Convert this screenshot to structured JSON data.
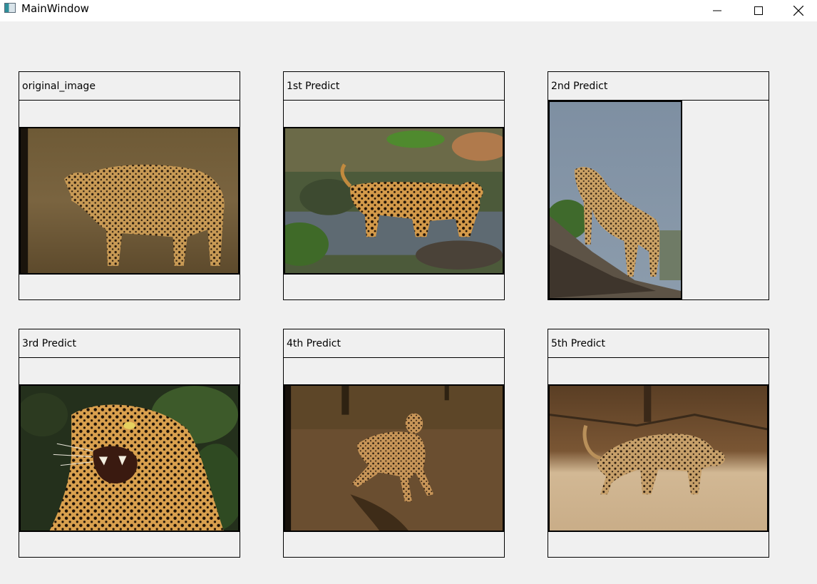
{
  "window": {
    "title": "MainWindow",
    "icon": "qt-app-icon",
    "controls": [
      "minimize-icon",
      "maximize-icon",
      "close-icon"
    ]
  },
  "panels": [
    {
      "label": "original_image",
      "content": "cheetah-photo"
    },
    {
      "label": "1st Predict",
      "content": "jaguar-in-stream-photo"
    },
    {
      "label": "2nd Predict",
      "content": "cheetah-on-rock-photo"
    },
    {
      "label": "3rd Predict",
      "content": "jaguar-roaring-photo"
    },
    {
      "label": "4th Predict",
      "content": "cheetah-running-photo"
    },
    {
      "label": "5th Predict",
      "content": "leopard-walking-photo"
    }
  ],
  "colors": {
    "background": "#f0f0f0",
    "titlebar": "#ffffff",
    "border": "#000000"
  }
}
